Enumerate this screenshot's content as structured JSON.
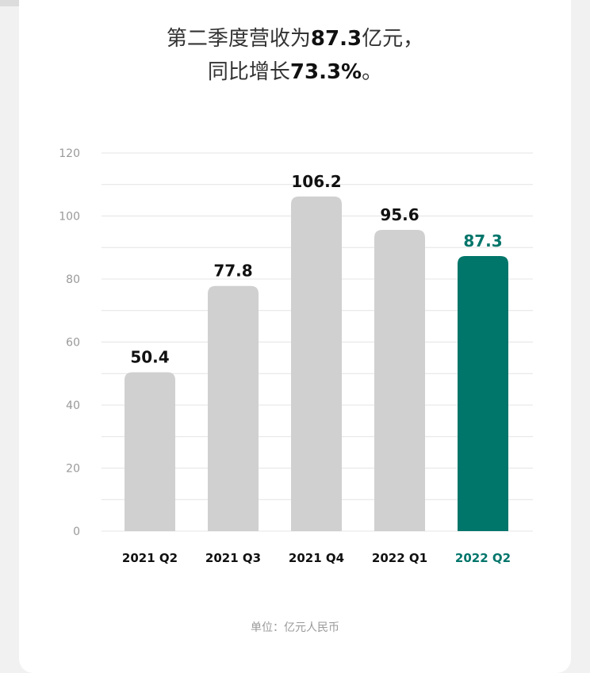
{
  "headline": {
    "line1_prefix": "第二季度营收为",
    "line1_value": "87.3",
    "line1_suffix": "亿元，",
    "line2_prefix": "同比增长",
    "line2_value": "73.3%",
    "line2_suffix": "。"
  },
  "colors": {
    "bar_default": "#d0d0d0",
    "bar_highlight": "#00756a",
    "label_default": "#111111",
    "label_highlight": "#00756a",
    "grid": "#e4e4e4",
    "axis_tick": "#999999"
  },
  "chart_data": {
    "type": "bar",
    "categories": [
      "2021 Q2",
      "2021 Q3",
      "2021 Q4",
      "2022 Q1",
      "2022 Q2"
    ],
    "values": [
      50.4,
      77.8,
      106.2,
      95.6,
      87.3
    ],
    "value_labels": [
      "50.4",
      "77.8",
      "106.2",
      "95.6",
      "87.3"
    ],
    "highlight_index": 4,
    "yticks": [
      "0",
      "20",
      "40",
      "60",
      "80",
      "100",
      "120"
    ],
    "ylim": [
      0,
      120
    ],
    "grid": true,
    "unit_label": "单位：亿元人民币"
  }
}
